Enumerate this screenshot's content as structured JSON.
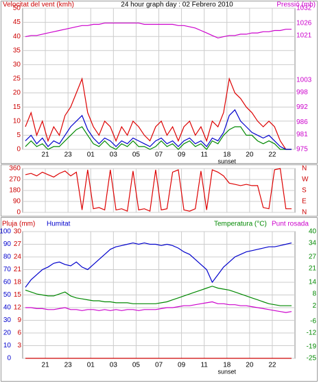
{
  "chart_data": [
    {
      "type": "line",
      "title": "24 hour graph day : 02 Febrero 2010",
      "ylabel": "Velocitat del vent (kmh)",
      "y2label": "Pressió (mb)",
      "x_labels": [
        "21",
        "23",
        "01",
        "03",
        "05",
        "07",
        "09",
        "11",
        "18",
        "20",
        "22"
      ],
      "annotation": "sunset",
      "ylim": [
        0,
        50
      ],
      "yticks": [
        0,
        5,
        10,
        15,
        20,
        25,
        30,
        35,
        40,
        45,
        50
      ],
      "y2lim": [
        975,
        1032
      ],
      "y2ticks": [
        975,
        981,
        986,
        992,
        998,
        1003,
        1021,
        1026,
        1032
      ],
      "axis_colors": {
        "y": "#cc0000",
        "y2": "#cc00cc"
      },
      "grid": true,
      "series": [
        {
          "color": "#dd0000",
          "values": [
            8,
            13,
            5,
            10,
            3,
            8,
            5,
            12,
            15,
            20,
            25,
            13,
            8,
            5,
            10,
            8,
            3,
            8,
            5,
            10,
            8,
            5,
            3,
            8,
            10,
            5,
            8,
            3,
            8,
            10,
            5,
            8,
            3,
            10,
            8,
            13,
            25,
            20,
            18,
            15,
            13,
            10,
            8,
            10,
            8,
            3,
            0,
            0
          ]
        },
        {
          "color": "#008800",
          "values": [
            1,
            3,
            1,
            2,
            0,
            1,
            1,
            3,
            5,
            7,
            8,
            5,
            2,
            1,
            3,
            1,
            0,
            2,
            1,
            3,
            1,
            1,
            0,
            1,
            3,
            1,
            2,
            0,
            2,
            3,
            1,
            2,
            0,
            3,
            2,
            5,
            7,
            8,
            8,
            5,
            5,
            3,
            2,
            3,
            2,
            0,
            0,
            0
          ]
        },
        {
          "color": "#0000cc",
          "values": [
            3,
            5,
            2,
            4,
            1,
            3,
            2,
            5,
            8,
            10,
            12,
            7,
            4,
            2,
            4,
            3,
            1,
            3,
            2,
            4,
            3,
            2,
            1,
            3,
            4,
            2,
            3,
            1,
            3,
            4,
            2,
            3,
            1,
            4,
            3,
            6,
            12,
            14,
            10,
            8,
            6,
            5,
            4,
            5,
            3,
            1,
            0,
            0
          ]
        },
        {
          "axis": "y2",
          "color": "#cc00cc",
          "values": [
            1020.5,
            1021,
            1021,
            1021.5,
            1022,
            1022.5,
            1023,
            1023.5,
            1024,
            1024.5,
            1025,
            1025,
            1025.5,
            1025.5,
            1026,
            1026,
            1026,
            1026,
            1026,
            1026,
            1026,
            1025.5,
            1025.5,
            1025.5,
            1025.5,
            1025.5,
            1025.5,
            1025,
            1025,
            1024.5,
            1024,
            1023,
            1022,
            1021,
            1020,
            1020.5,
            1021,
            1021,
            1021.5,
            1021.5,
            1022,
            1022,
            1022.5,
            1022.5,
            1023,
            1023,
            1023.5,
            1023.5
          ]
        }
      ]
    },
    {
      "type": "line",
      "ylim": [
        0,
        360
      ],
      "yticks": [
        0,
        90,
        180,
        270,
        360
      ],
      "y2lim": [
        0,
        360
      ],
      "y2ticks": [
        {
          "value": 0,
          "label": "N"
        },
        {
          "value": 90,
          "label": "E"
        },
        {
          "value": 180,
          "label": "S"
        },
        {
          "value": 270,
          "label": "W"
        },
        {
          "value": 360,
          "label": "N"
        }
      ],
      "axis_colors": {
        "y": "#cc0000",
        "y2": "#cc0000"
      },
      "grid": true,
      "series": [
        {
          "color": "#dd0000",
          "values": [
            310,
            320,
            300,
            330,
            310,
            290,
            320,
            340,
            300,
            330,
            20,
            350,
            30,
            40,
            20,
            350,
            20,
            30,
            10,
            340,
            20,
            30,
            10,
            350,
            20,
            30,
            330,
            350,
            20,
            10,
            30,
            340,
            20,
            350,
            330,
            300,
            240,
            230,
            220,
            230,
            220,
            220,
            40,
            30,
            350,
            360,
            30,
            30
          ]
        }
      ]
    },
    {
      "type": "line",
      "x_labels": [
        "21",
        "23",
        "01",
        "03",
        "05",
        "07",
        "09",
        "11",
        "18",
        "20",
        "22"
      ],
      "annotation": "sunset",
      "ylim": [
        0,
        100
      ],
      "yticks": [
        0,
        10,
        20,
        30,
        40,
        50,
        60,
        70,
        80,
        90,
        100
      ],
      "y3lim": [
        0,
        30
      ],
      "y3ticks": [
        3,
        6,
        9,
        12,
        15,
        18,
        21,
        24,
        27,
        30
      ],
      "y2lim": [
        -25,
        40
      ],
      "y2ticks": [
        -25,
        -19,
        -12,
        -6,
        2,
        8,
        14,
        21,
        27,
        34,
        40
      ],
      "axis_colors": {
        "y": "#0000cc",
        "y3": "#cc0000",
        "y2": "#008800"
      },
      "grid": true,
      "series": [
        {
          "name": "Pluja (mm)",
          "axis": "y3",
          "color": "#cc0000",
          "values": [
            0,
            0,
            0,
            0,
            0,
            0,
            0,
            0,
            0,
            0,
            0,
            0,
            0,
            0,
            0,
            0,
            0,
            0,
            0,
            0,
            0,
            0,
            0,
            0,
            0,
            0,
            0,
            0,
            0,
            0,
            0,
            0,
            0,
            0,
            0,
            0,
            0,
            0,
            0,
            0,
            0,
            0,
            0,
            0,
            0,
            0,
            0,
            0
          ]
        },
        {
          "name": "Humitat",
          "color": "#0000cc",
          "values": [
            56,
            62,
            66,
            70,
            72,
            75,
            76,
            74,
            73,
            76,
            72,
            70,
            74,
            78,
            82,
            86,
            88,
            89,
            90,
            91,
            90,
            91,
            90,
            90,
            89,
            90,
            89,
            87,
            84,
            82,
            78,
            74,
            70,
            60,
            66,
            72,
            76,
            80,
            82,
            84,
            85,
            86,
            87,
            88,
            88,
            89,
            90,
            91
          ]
        },
        {
          "name": "Temperatura (°C)",
          "axis": "y2",
          "color": "#008800",
          "values": [
            10,
            9,
            8,
            7.5,
            7,
            7,
            8,
            9,
            7,
            6,
            5.5,
            5,
            4.5,
            4.5,
            4,
            4,
            3.5,
            3.5,
            3.5,
            3,
            3,
            3,
            3,
            3,
            3.5,
            4,
            5,
            6,
            7,
            8,
            9,
            10,
            11,
            12,
            11,
            10.5,
            10,
            9,
            8,
            7,
            6,
            5,
            4,
            3,
            2.5,
            2,
            2,
            2
          ]
        },
        {
          "name": "Punt rosada",
          "axis": "y2",
          "color": "#cc00cc",
          "values": [
            1,
            1,
            0.5,
            0.5,
            0,
            0,
            0.5,
            1,
            0,
            0,
            -0.5,
            0,
            0,
            -0.5,
            0,
            -0.5,
            0,
            -0.5,
            0,
            0,
            -0.5,
            0,
            0,
            0,
            0.5,
            1,
            1,
            1.5,
            2,
            2,
            2.5,
            3,
            3.5,
            4,
            3,
            3,
            2.5,
            2.5,
            2,
            2,
            1.5,
            1,
            0.5,
            0,
            -0.5,
            -1,
            -1.5,
            -1
          ]
        }
      ]
    }
  ]
}
